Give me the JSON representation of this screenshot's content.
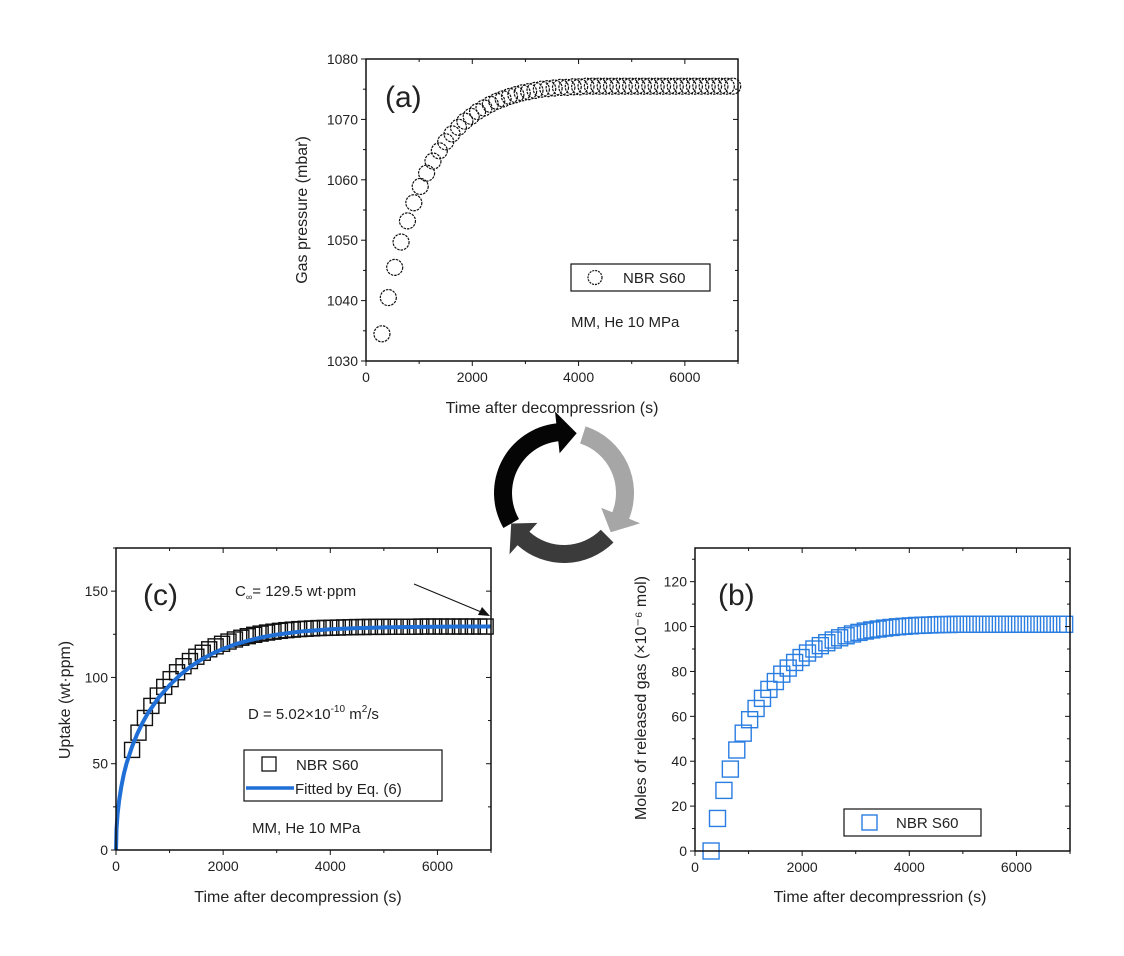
{
  "chart_data": [
    {
      "id": "a",
      "type": "scatter",
      "panel_label": "(a)",
      "title": "",
      "xlabel": "Time after decompressrion (s)",
      "ylabel": "Gas pressure (mbar)",
      "xlim": [
        0,
        7000
      ],
      "ylim": [
        1030,
        1080
      ],
      "xticks": [
        0,
        2000,
        4000,
        6000
      ],
      "yticks": [
        1030,
        1040,
        1050,
        1060,
        1070,
        1080
      ],
      "grid": false,
      "legend": {
        "placement": "lower-right",
        "entries": [
          {
            "label": "NBR S60",
            "marker": "circle-open",
            "color": "#111111"
          }
        ]
      },
      "annotations": [
        "MM, He 10 MPa"
      ],
      "series": [
        {
          "name": "NBR S60",
          "marker": "circle-open",
          "color": "#111111",
          "x": [
            300,
            420,
            540,
            660,
            780,
            900,
            1020,
            1140,
            1260,
            1380,
            1500,
            1620,
            1740,
            1860,
            1980,
            2100,
            2220,
            2340,
            2460,
            2580,
            2700,
            2820,
            2940,
            3060,
            3180,
            3300,
            3420,
            3540,
            3660,
            3780,
            3900,
            4020,
            4140,
            4260,
            4380,
            4500,
            4620,
            4740,
            4860,
            4980,
            5100,
            5220,
            5340,
            5460,
            5580,
            5700,
            5820,
            5940,
            6060,
            6180,
            6300,
            6420,
            6540,
            6660,
            6780,
            6900
          ],
          "y": [
            1034.5,
            1040.5,
            1045.5,
            1049.7,
            1053.2,
            1056.2,
            1058.9,
            1061.1,
            1063.1,
            1064.8,
            1066.3,
            1067.6,
            1068.7,
            1069.7,
            1070.5,
            1071.3,
            1071.9,
            1072.5,
            1073.0,
            1073.4,
            1073.8,
            1074.1,
            1074.4,
            1074.6,
            1074.8,
            1075.0,
            1075.1,
            1075.2,
            1075.3,
            1075.3,
            1075.4,
            1075.4,
            1075.5,
            1075.5,
            1075.5,
            1075.5,
            1075.5,
            1075.5,
            1075.5,
            1075.5,
            1075.5,
            1075.5,
            1075.5,
            1075.5,
            1075.5,
            1075.5,
            1075.5,
            1075.5,
            1075.5,
            1075.5,
            1075.5,
            1075.5,
            1075.5,
            1075.5,
            1075.5,
            1075.5
          ]
        }
      ]
    },
    {
      "id": "b",
      "type": "scatter",
      "panel_label": "(b)",
      "title": "",
      "xlabel": "Time after decompressrion (s)",
      "ylabel": "Moles of released gas (×10⁻⁶ mol)",
      "xlim": [
        0,
        7000
      ],
      "ylim": [
        0,
        135
      ],
      "xticks": [
        0,
        2000,
        4000,
        6000
      ],
      "yticks": [
        0,
        20,
        40,
        60,
        80,
        100,
        120
      ],
      "grid": false,
      "legend": {
        "placement": "lower-right",
        "entries": [
          {
            "label": "NBR S60",
            "marker": "square-open",
            "color": "#2a7de1"
          }
        ]
      },
      "annotations": [],
      "series": [
        {
          "name": "NBR S60",
          "marker": "square-open",
          "color": "#2a7de1",
          "x": [
            300,
            420,
            540,
            660,
            780,
            900,
            1020,
            1140,
            1260,
            1380,
            1500,
            1620,
            1740,
            1860,
            1980,
            2100,
            2220,
            2340,
            2460,
            2580,
            2700,
            2820,
            2940,
            3060,
            3180,
            3300,
            3420,
            3540,
            3660,
            3780,
            3900,
            4020,
            4140,
            4260,
            4380,
            4500,
            4620,
            4740,
            4860,
            4980,
            5100,
            5220,
            5340,
            5460,
            5580,
            5700,
            5820,
            5940,
            6060,
            6180,
            6300,
            6420,
            6540,
            6660,
            6780,
            6900
          ],
          "y": [
            0,
            14.5,
            27,
            36.5,
            45,
            52.5,
            58.5,
            63.5,
            68,
            72,
            75.5,
            78.8,
            81.5,
            84,
            86.2,
            88.2,
            90,
            91.5,
            92.8,
            94,
            95,
            95.9,
            96.7,
            97.4,
            98,
            98.5,
            98.9,
            99.3,
            99.6,
            99.9,
            100.1,
            100.3,
            100.5,
            100.6,
            100.7,
            100.8,
            100.9,
            100.9,
            101,
            101,
            101,
            101,
            101,
            101,
            101,
            101,
            101,
            101,
            101,
            101,
            101,
            101,
            101,
            101,
            101,
            101
          ]
        }
      ]
    },
    {
      "id": "c",
      "type": "scatter",
      "panel_label": "(c)",
      "title": "",
      "xlabel": "Time after decompression (s)",
      "ylabel": "Uptake (wt·ppm)",
      "xlim": [
        0,
        7000
      ],
      "ylim": [
        0,
        175
      ],
      "xticks": [
        0,
        2000,
        4000,
        6000
      ],
      "yticks": [
        0,
        50,
        100,
        150
      ],
      "grid": false,
      "legend": {
        "placement": "lower-right",
        "entries": [
          {
            "label": "NBR S60",
            "marker": "square-open",
            "color": "#111111"
          },
          {
            "label": "Fitted by Eq. (6)",
            "marker": "line",
            "color": "#1f6fd6"
          }
        ]
      },
      "annotations": [
        "C∞= 129.5 wt·ppm",
        "D = 5.02×10⁻¹⁰ m²/s",
        "MM, He 10 MPa"
      ],
      "c_infinity_label": {
        "base": "C",
        "sub": "∞",
        "rest": "= 129.5 wt·ppm"
      },
      "d_label": {
        "main": "D = 5.02×10",
        "exp": "-10",
        "unit": " m",
        "unit_exp": "2",
        "tail": "/s"
      },
      "series": [
        {
          "name": "NBR S60",
          "marker": "square-open",
          "color": "#111111",
          "x": [
            300,
            420,
            540,
            660,
            780,
            900,
            1020,
            1140,
            1260,
            1380,
            1500,
            1620,
            1740,
            1860,
            1980,
            2100,
            2220,
            2340,
            2460,
            2580,
            2700,
            2820,
            2940,
            3060,
            3180,
            3300,
            3420,
            3540,
            3660,
            3780,
            3900,
            4020,
            4140,
            4260,
            4380,
            4500,
            4620,
            4740,
            4860,
            4980,
            5100,
            5220,
            5340,
            5460,
            5580,
            5700,
            5820,
            5940,
            6060,
            6180,
            6300,
            6420,
            6540,
            6660,
            6780,
            6900
          ],
          "y": [
            58,
            68,
            76.5,
            83.5,
            89.5,
            94.5,
            99,
            103,
            106.5,
            109.5,
            112,
            114.3,
            116.3,
            118,
            119.5,
            120.8,
            122,
            123,
            123.9,
            124.7,
            125.4,
            126,
            126.5,
            127,
            127.4,
            127.7,
            128,
            128.2,
            128.4,
            128.6,
            128.7,
            128.8,
            128.9,
            129,
            129.1,
            129.2,
            129.2,
            129.3,
            129.3,
            129.3,
            129.4,
            129.4,
            129.4,
            129.4,
            129.4,
            129.5,
            129.5,
            129.5,
            129.5,
            129.5,
            129.5,
            129.5,
            129.5,
            129.5,
            129.5,
            129.5
          ]
        },
        {
          "name": "Fitted by Eq. (6)",
          "marker": "line",
          "color": "#1f6fd6",
          "x": [
            0,
            10,
            30,
            60,
            100,
            150,
            200,
            300,
            400,
            500,
            600,
            800,
            1000,
            1200,
            1400,
            1600,
            1800,
            2000,
            2250,
            2500,
            2750,
            3000,
            3500,
            4000,
            4500,
            5000,
            5500,
            6000,
            6500,
            7000
          ],
          "y": [
            0,
            12,
            21,
            29,
            37,
            44.5,
            50.5,
            60,
            67.5,
            74,
            79.5,
            88.5,
            95.5,
            101.5,
            106.5,
            110.5,
            113.8,
            116.6,
            119.4,
            121.6,
            123.4,
            124.8,
            126.8,
            127.9,
            128.6,
            129,
            129.2,
            129.4,
            129.5,
            129.5
          ]
        }
      ]
    }
  ],
  "cycle_arrows": {
    "segments": [
      {
        "name": "black-arrow",
        "color": "#050505"
      },
      {
        "name": "gray-arrow",
        "color": "#a6a6a6"
      },
      {
        "name": "dark-gray-arrow",
        "color": "#3b3b3b"
      }
    ]
  }
}
